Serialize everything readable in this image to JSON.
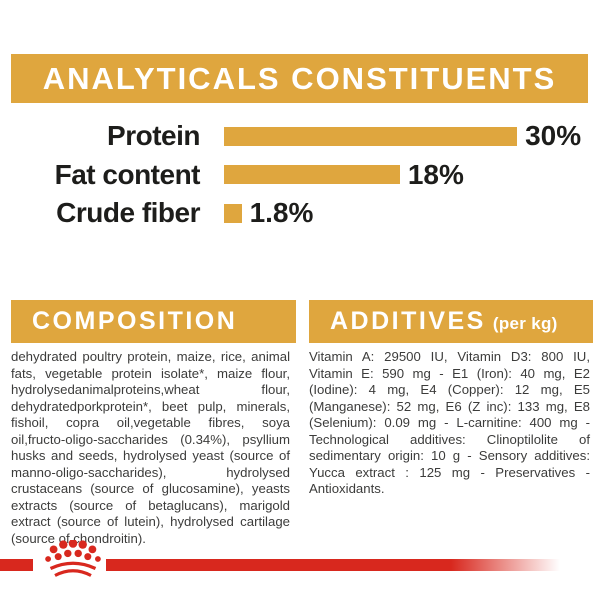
{
  "title": "ANALYTICALS CONSTITUENTS",
  "chart_data": {
    "type": "bar",
    "orientation": "horizontal",
    "title": "ANALYTICALS CONSTITUENTS",
    "categories": [
      "Protein",
      "Fat content",
      "Crude fiber"
    ],
    "values": [
      30,
      18,
      1.8
    ],
    "value_labels": [
      "30%",
      "18%",
      "1.8%"
    ],
    "unit": "%",
    "xlim": [
      0,
      30
    ],
    "grid": false,
    "bar_color": "#DFA63E"
  },
  "composition": {
    "heading": "COMPOSITION",
    "body": "dehydrated poultry protein, maize, rice, animal fats, vegetable protein isolate*, maize flour, hydrolysedanimalproteins,wheat flour, dehydratedporkprotein*, beet pulp, minerals, fishoil, copra oil,vegetable fibres, soya oil,fructo-oligo-saccharides (0.34%), psyllium husks and seeds, hydrolysed yeast (source of manno-oligo-saccharides), hydrolysed crustaceans (source of glucosamine), yeasts extracts (source of betaglucans), marigold extract (source of lutein), hydrolysed cartilage (source of chondroitin)."
  },
  "additives": {
    "heading": "ADDITIVES",
    "heading_suffix": "(per kg)",
    "body": "Vitamin A: 29500 IU, Vitamin D3: 800 IU, Vitamin E: 590 mg - E1 (Iron): 40 mg, E2 (Iodine): 4 mg, E4 (Copper): 12 mg, E5 (Manganese): 52 mg, E6 (Z inc): 133 mg, E8 (Selenium): 0.09 mg - L-carnitine: 400 mg - Technological additives: Clinoptilolite of sedimentary origin: 10 g - Sensory additives: Yucca extract : 125 mg - Preservatives - Antioxidants."
  },
  "footer": {
    "logo": "royal-canin-crown"
  },
  "colors": {
    "gold": "#DFA63E",
    "red": "#D8281E",
    "text_dark": "#1D1D1B",
    "body_text": "#3C3C3B"
  }
}
